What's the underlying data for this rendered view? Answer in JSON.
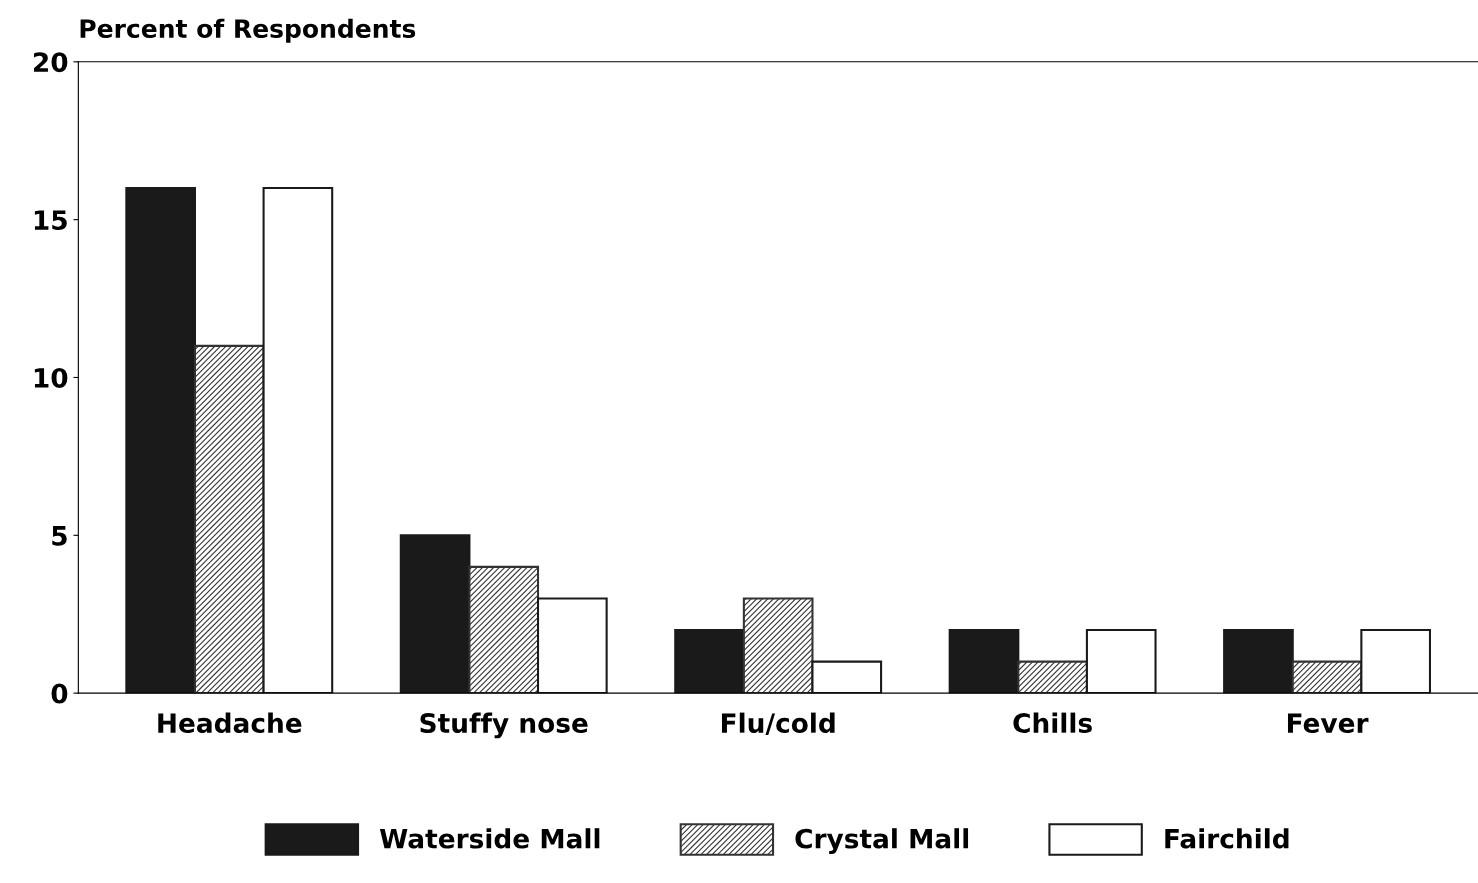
{
  "chart_data": {
    "type": "bar",
    "ylabel": "Percent of Respondents",
    "categories": [
      "Headache",
      "Stuffy nose",
      "Flu/cold",
      "Chills",
      "Fever"
    ],
    "series": [
      {
        "name": "Waterside Mall",
        "color": "#1a1a1a",
        "values": [
          16,
          5,
          2,
          2,
          2
        ]
      },
      {
        "name": "Crystal Mall",
        "color": "#333333",
        "values": [
          11,
          4,
          3,
          1,
          1
        ]
      },
      {
        "name": "Fairchild",
        "color": "#ffffff",
        "values": [
          16,
          3,
          1,
          2,
          2
        ]
      }
    ],
    "ylim": [
      0,
      20
    ],
    "yticks": [
      0,
      5,
      10,
      15,
      20
    ],
    "grid": false,
    "legend": "bottom"
  }
}
